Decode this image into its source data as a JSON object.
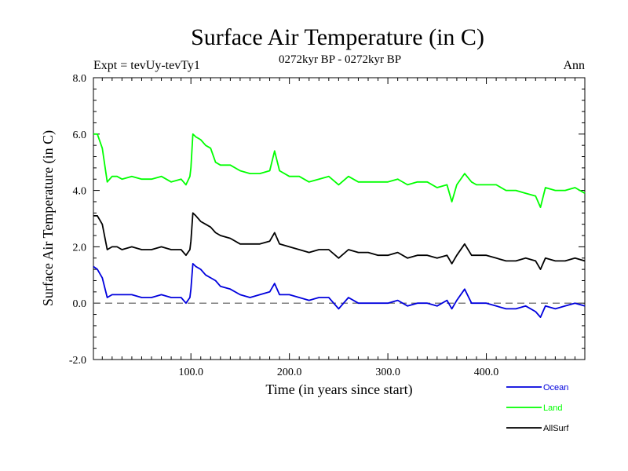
{
  "chart_data": {
    "type": "line",
    "title": "Surface Air Temperature (in C)",
    "subtitle": "0272kyr BP - 0272kyr BP",
    "expt_label": "Expt = tevUy-tevTy1",
    "period_label": "Ann",
    "xlabel": "Time (in years since start)",
    "ylabel": "Surface Air Temperature (in C)",
    "xlim": [
      1,
      500
    ],
    "ylim": [
      -2.0,
      8.0
    ],
    "x_ticks": [
      100,
      200,
      300,
      400
    ],
    "x_tick_labels": [
      "100.0",
      "200.0",
      "300.0",
      "400.0"
    ],
    "y_ticks": [
      -2,
      0,
      2,
      4,
      6,
      8
    ],
    "y_tick_labels": [
      "-2.0",
      "0.0",
      "2.0",
      "4.0",
      "6.0",
      "8.0"
    ],
    "reference_line": 0.0,
    "legend_position": "bottom-right, below plot",
    "colors": {
      "Ocean": "#0000dd",
      "Land": "#00ff00",
      "AllSurf": "#000000",
      "zero_line": "#555555"
    },
    "x": [
      1,
      5,
      10,
      15,
      20,
      25,
      30,
      40,
      50,
      60,
      70,
      80,
      90,
      95,
      99,
      100,
      102,
      105,
      110,
      115,
      120,
      125,
      130,
      140,
      150,
      160,
      170,
      180,
      185,
      190,
      200,
      210,
      220,
      230,
      240,
      250,
      260,
      270,
      280,
      290,
      300,
      310,
      320,
      330,
      340,
      350,
      360,
      365,
      370,
      378,
      385,
      390,
      400,
      410,
      420,
      430,
      440,
      450,
      455,
      460,
      470,
      480,
      490,
      500
    ],
    "series": [
      {
        "name": "Land",
        "values": [
          6.0,
          6.0,
          5.5,
          4.3,
          4.5,
          4.5,
          4.4,
          4.5,
          4.4,
          4.4,
          4.5,
          4.3,
          4.4,
          4.2,
          4.5,
          4.8,
          6.0,
          5.9,
          5.8,
          5.6,
          5.5,
          5.0,
          4.9,
          4.9,
          4.7,
          4.6,
          4.6,
          4.7,
          5.4,
          4.7,
          4.5,
          4.5,
          4.3,
          4.4,
          4.5,
          4.2,
          4.5,
          4.3,
          4.3,
          4.3,
          4.3,
          4.4,
          4.2,
          4.3,
          4.3,
          4.1,
          4.2,
          3.6,
          4.2,
          4.6,
          4.3,
          4.2,
          4.2,
          4.2,
          4.0,
          4.0,
          3.9,
          3.8,
          3.4,
          4.1,
          4.0,
          4.0,
          4.1,
          3.9
        ]
      },
      {
        "name": "AllSurf",
        "values": [
          3.1,
          3.1,
          2.8,
          1.9,
          2.0,
          2.0,
          1.9,
          2.0,
          1.9,
          1.9,
          2.0,
          1.9,
          1.9,
          1.7,
          1.9,
          2.2,
          3.2,
          3.1,
          2.9,
          2.8,
          2.7,
          2.5,
          2.4,
          2.3,
          2.1,
          2.1,
          2.1,
          2.2,
          2.5,
          2.1,
          2.0,
          1.9,
          1.8,
          1.9,
          1.9,
          1.6,
          1.9,
          1.8,
          1.8,
          1.7,
          1.7,
          1.8,
          1.6,
          1.7,
          1.7,
          1.6,
          1.7,
          1.4,
          1.7,
          2.1,
          1.7,
          1.7,
          1.7,
          1.6,
          1.5,
          1.5,
          1.6,
          1.5,
          1.2,
          1.6,
          1.5,
          1.5,
          1.6,
          1.5
        ]
      },
      {
        "name": "Ocean",
        "values": [
          1.3,
          1.2,
          0.9,
          0.2,
          0.3,
          0.3,
          0.3,
          0.3,
          0.2,
          0.2,
          0.3,
          0.2,
          0.2,
          0.0,
          0.2,
          0.5,
          1.4,
          1.3,
          1.2,
          1.0,
          0.9,
          0.8,
          0.6,
          0.5,
          0.3,
          0.2,
          0.3,
          0.4,
          0.7,
          0.3,
          0.3,
          0.2,
          0.1,
          0.2,
          0.2,
          -0.2,
          0.2,
          0.0,
          0.0,
          0.0,
          0.0,
          0.1,
          -0.1,
          0.0,
          0.0,
          -0.1,
          0.1,
          -0.2,
          0.1,
          0.5,
          0.0,
          0.0,
          0.0,
          -0.1,
          -0.2,
          -0.2,
          -0.1,
          -0.3,
          -0.5,
          -0.1,
          -0.2,
          -0.1,
          0.0,
          -0.1
        ]
      }
    ],
    "legend": [
      "Ocean",
      "Land",
      "AllSurf"
    ],
    "grid": false
  }
}
